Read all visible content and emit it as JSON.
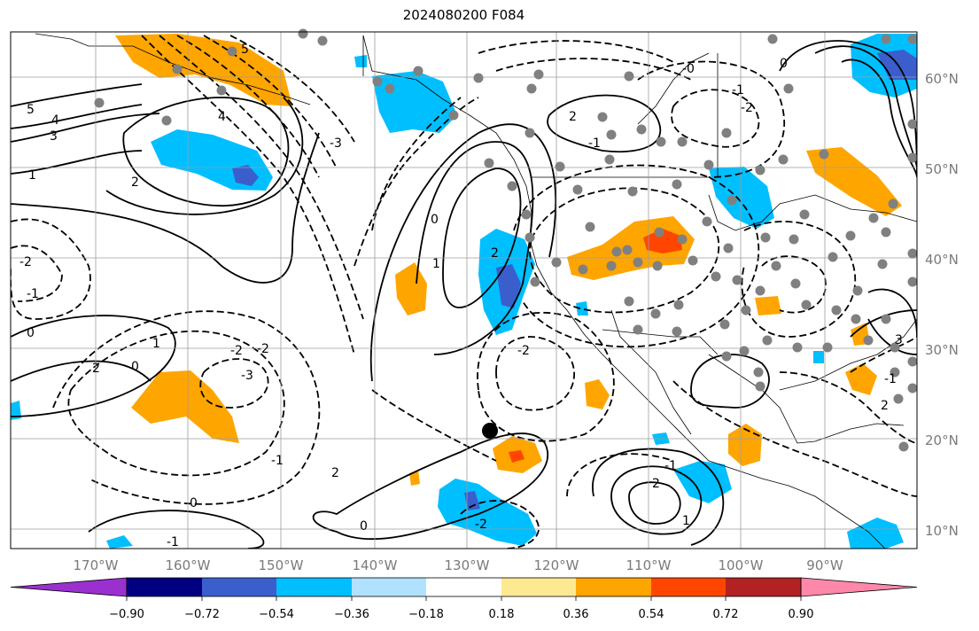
{
  "title": "2024080200 F084",
  "map": {
    "projection": "PlateCarree",
    "lon_range": [
      -179,
      -81
    ],
    "lat_range": [
      8,
      65
    ],
    "gridlines": true,
    "lon_labels": [
      "170°W",
      "160°W",
      "150°W",
      "140°W",
      "130°W",
      "120°W",
      "110°W",
      "100°W",
      "90°W"
    ],
    "lat_labels": [
      "60°N",
      "50°N",
      "40°N",
      "30°N",
      "20°N",
      "10°N"
    ],
    "marker": {
      "lon": -126,
      "lat": 21,
      "color": "#000000"
    },
    "station_dot_color": "#808080",
    "contour_labels": [
      "5",
      "4",
      "3",
      "1",
      "2",
      "0",
      "-1",
      "-2",
      "-3",
      "1",
      "2",
      "0",
      "-1",
      "-2",
      "0",
      "1",
      "2",
      "-2",
      "-1",
      "-0",
      "0",
      "-2",
      "-1",
      "2",
      "1",
      "2",
      "-1",
      "-2",
      "0",
      "2",
      "0",
      "-1",
      "2",
      "-3",
      "-2",
      "-1",
      "5",
      "4",
      "3"
    ]
  },
  "colorbar": {
    "ticks": [
      "−0.90",
      "−0.72",
      "−0.54",
      "−0.36",
      "−0.18",
      "0.18",
      "0.36",
      "0.54",
      "0.72",
      "0.90"
    ],
    "colors": [
      "#9b30d0",
      "#000080",
      "#3a5fcd",
      "#00bfff",
      "#b0e2ff",
      "#ffffff",
      "#fde992",
      "#ffa500",
      "#ff4500",
      "#b22222",
      "#ff88aa"
    ],
    "extend": "both"
  }
}
